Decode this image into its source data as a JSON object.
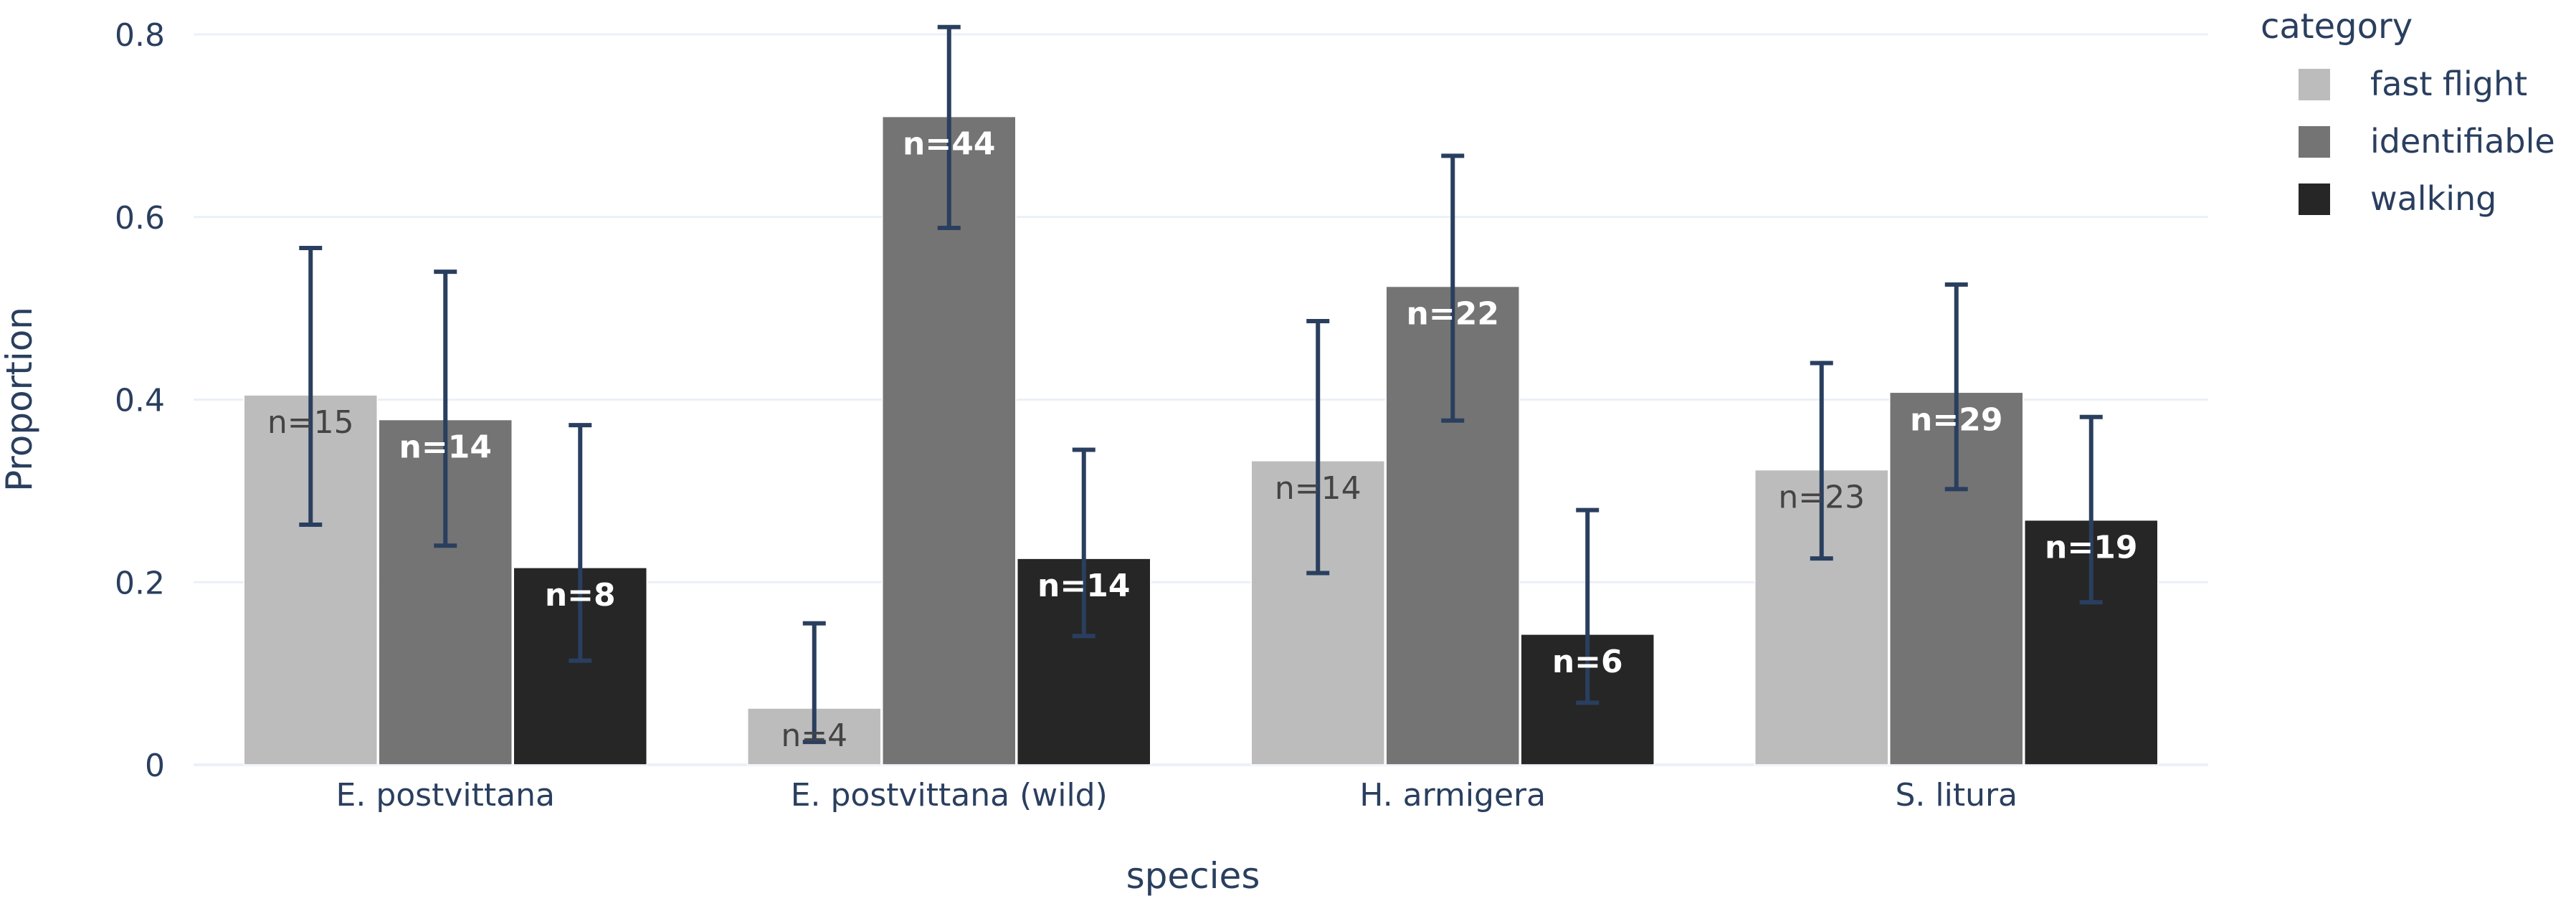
{
  "colors": {
    "fast_flight": "#bcbcbc",
    "identifiable": "#747474",
    "walking": "#262626",
    "error_bar": "#2a3f5f",
    "grid": "#ebf0f8",
    "axis_text": "#2a3f5f",
    "label_light": "#444444",
    "label_dark": "#ffffff"
  },
  "chart_data": {
    "type": "bar",
    "xlabel": "species",
    "ylabel": "Proportion",
    "ylim": [
      0,
      0.8
    ],
    "yticks": [
      0,
      0.2,
      0.4,
      0.6,
      0.8
    ],
    "ytick_labels": [
      "0",
      "0.2",
      "0.4",
      "0.6",
      "0.8"
    ],
    "categories": [
      "E. postvittana",
      "E. postvittana (wild)",
      "H. armigera",
      "S. litura"
    ],
    "legend": {
      "title": "category",
      "position": "top-right"
    },
    "series": [
      {
        "name": "fast flight",
        "color_key": "fast_flight",
        "values": [
          0.405,
          0.062,
          0.333,
          0.323
        ],
        "error_low": [
          0.263,
          0.025,
          0.21,
          0.226
        ],
        "error_high": [
          0.566,
          0.155,
          0.486,
          0.44
        ],
        "labels": [
          "n=15",
          "n=4",
          "n=14",
          "n=23"
        ]
      },
      {
        "name": "identifiable",
        "color_key": "identifiable",
        "values": [
          0.378,
          0.71,
          0.524,
          0.408
        ],
        "error_low": [
          0.24,
          0.588,
          0.377,
          0.302
        ],
        "error_high": [
          0.54,
          0.808,
          0.667,
          0.526
        ],
        "labels": [
          "n=14",
          "n=44",
          "n=22",
          "n=29"
        ]
      },
      {
        "name": "walking",
        "color_key": "walking",
        "values": [
          0.216,
          0.226,
          0.143,
          0.268
        ],
        "error_low": [
          0.114,
          0.141,
          0.068,
          0.178
        ],
        "error_high": [
          0.372,
          0.345,
          0.279,
          0.381
        ],
        "labels": [
          "n=8",
          "n=14",
          "n=6",
          "n=19"
        ]
      }
    ]
  }
}
